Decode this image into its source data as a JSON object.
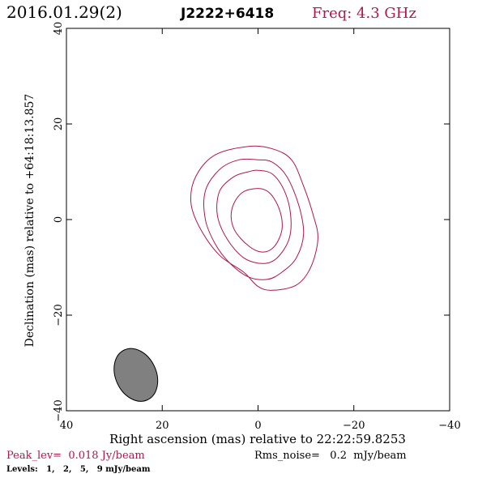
{
  "header": {
    "date": "2016.01.29(2)",
    "source": "J2222+6418",
    "freq": "Freq: 4.3 GHz"
  },
  "footer": {
    "peak": "Peak_lev=  0.018 Jy/beam",
    "rms": "Rms_noise=   0.2  mJy/beam",
    "levels": "Levels:   1,   2,   5,   9 mJy/beam"
  },
  "colors": {
    "contour": "#b0174a",
    "beam_fill": "#808080",
    "axis": "#000000"
  },
  "chart_data": {
    "type": "contour",
    "xlabel": "Right ascension (mas) relative to 22:22:59.8253",
    "ylabel": "Declination (mas) relative to +64:18:13.857",
    "xlim": [
      40,
      -40
    ],
    "ylim": [
      -40,
      40
    ],
    "x_ticks": [
      40,
      20,
      0,
      -20,
      -40
    ],
    "y_ticks": [
      -40,
      -20,
      0,
      20,
      40
    ],
    "x_tick_labels": [
      "40",
      "20",
      "0",
      "−20",
      "−40"
    ],
    "y_tick_labels": [
      "−40",
      "−20",
      "0",
      "20",
      "40"
    ],
    "contour_levels_mJy": [
      1,
      2,
      5,
      9
    ],
    "contours": [
      {
        "level": 1,
        "points": [
          [
            2,
            15.3
          ],
          [
            -3,
            14.8
          ],
          [
            -7,
            12.5
          ],
          [
            -9.5,
            7
          ],
          [
            -11.5,
            1
          ],
          [
            -12.5,
            -4
          ],
          [
            -11,
            -10
          ],
          [
            -8,
            -13.7
          ],
          [
            -3,
            -14.8
          ],
          [
            0,
            -14
          ],
          [
            3,
            -11
          ],
          [
            8,
            -7.5
          ],
          [
            12,
            -2
          ],
          [
            14,
            3.5
          ],
          [
            13,
            9
          ],
          [
            9,
            13.5
          ]
        ]
      },
      {
        "level": 2,
        "points": [
          [
            0,
            12.5
          ],
          [
            -3,
            12
          ],
          [
            -6,
            9
          ],
          [
            -8.5,
            3
          ],
          [
            -9.5,
            -3
          ],
          [
            -8,
            -8
          ],
          [
            -5,
            -11
          ],
          [
            -2,
            -12.5
          ],
          [
            2,
            -12
          ],
          [
            6,
            -9
          ],
          [
            9,
            -5
          ],
          [
            11,
            0
          ],
          [
            11,
            6
          ],
          [
            8,
            10.5
          ],
          [
            4,
            12.5
          ]
        ]
      },
      {
        "level": 5,
        "points": [
          [
            0,
            10.3
          ],
          [
            -3,
            9.5
          ],
          [
            -5.5,
            6
          ],
          [
            -6.8,
            1
          ],
          [
            -6.5,
            -4
          ],
          [
            -4,
            -8
          ],
          [
            -1,
            -9.2
          ],
          [
            3,
            -8
          ],
          [
            6.5,
            -4
          ],
          [
            8.5,
            1
          ],
          [
            8,
            6
          ],
          [
            5,
            9
          ],
          [
            2,
            10
          ]
        ]
      },
      {
        "level": 9,
        "points": [
          [
            0,
            6.5
          ],
          [
            -2.5,
            5.5
          ],
          [
            -4.5,
            2
          ],
          [
            -5,
            -2
          ],
          [
            -3.5,
            -5.5
          ],
          [
            -1,
            -6.8
          ],
          [
            2,
            -5.5
          ],
          [
            5,
            -2
          ],
          [
            5.5,
            2
          ],
          [
            3.5,
            5.5
          ]
        ]
      }
    ],
    "beam": {
      "center": [
        25.5,
        -32.5
      ],
      "major": 11.5,
      "minor": 8.5,
      "pa_deg": -25
    }
  }
}
